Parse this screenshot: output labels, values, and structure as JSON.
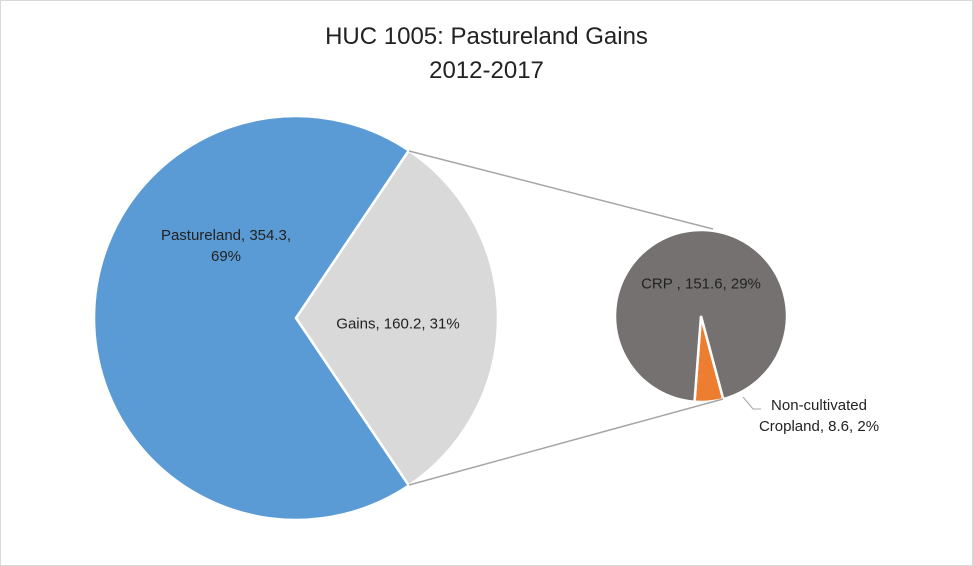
{
  "chart_data": {
    "type": "pie-of-pie",
    "title": "HUC 1005: Pastureland Gains",
    "subtitle": "2012-2017",
    "primary": {
      "values": [
        354.3,
        160.2
      ],
      "value_labels": [
        "Pastureland, 354.3, 69%",
        "Gains, 160.2, 31%"
      ],
      "colors": [
        "#5b9bd5",
        "#d9d9d9"
      ]
    },
    "secondary": {
      "values": [
        151.6,
        8.6
      ],
      "value_labels": [
        "CRP , 151.6, 29%",
        "Non-cultivated Cropland, 8.6, 2%"
      ],
      "colors": [
        "#767171",
        "#ed7d31"
      ]
    }
  }
}
